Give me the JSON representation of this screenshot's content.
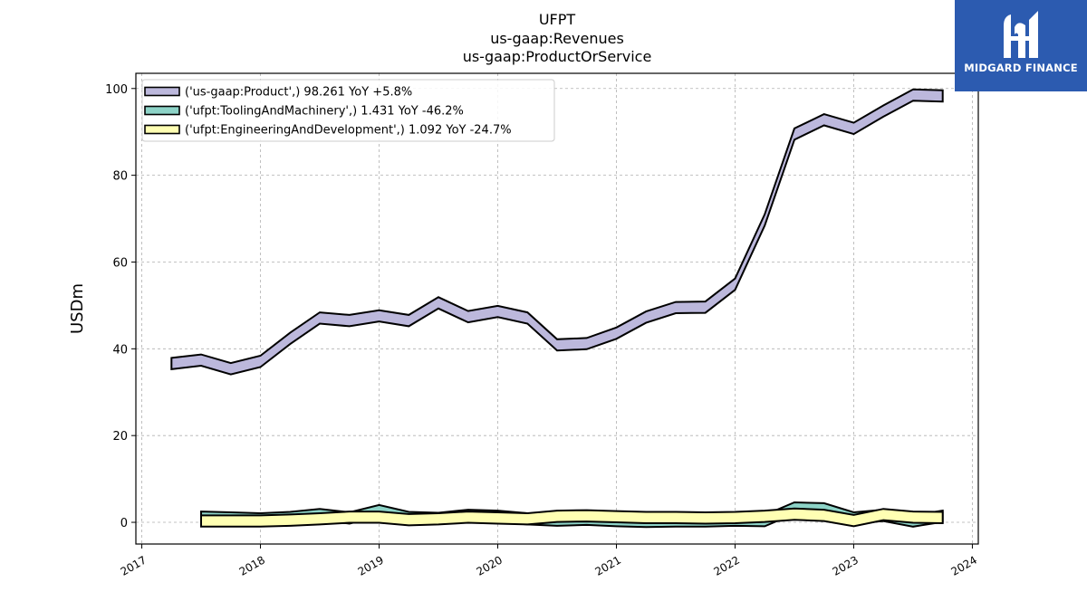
{
  "brand": {
    "name": "MIDGARD FINANCE",
    "color": "#2c5bb0"
  },
  "chart_data": {
    "type": "area",
    "title_lines": [
      "UFPT",
      "us-gaap:Revenues",
      "us-gaap:ProductOrService"
    ],
    "xlabel": "",
    "ylabel": "USDm",
    "xlim": [
      2016.95,
      2024.05
    ],
    "ylim": [
      -5,
      103.5
    ],
    "x_ticks": [
      "2017",
      "2018",
      "2019",
      "2020",
      "2021",
      "2022",
      "2023",
      "2024"
    ],
    "y_ticks": [
      "0",
      "20",
      "40",
      "60",
      "80",
      "100"
    ],
    "grid": true,
    "legend_position": "upper-left",
    "series": [
      {
        "name": "('us-gaap:Product',) 98.261 YoY +5.8%",
        "color": "#bcb8dc",
        "x": [
          2017.25,
          2017.5,
          2017.75,
          2018.0,
          2018.25,
          2018.5,
          2018.75,
          2019.0,
          2019.25,
          2019.5,
          2019.75,
          2020.0,
          2020.25,
          2020.5,
          2020.75,
          2021.0,
          2021.25,
          2021.5,
          2021.75,
          2022.0,
          2022.25,
          2022.5,
          2022.75,
          2023.0,
          2023.25,
          2023.5,
          2023.75
        ],
        "values": [
          36.6,
          37.4,
          35.4,
          37.1,
          42.4,
          47.1,
          46.5,
          47.6,
          46.5,
          50.6,
          47.4,
          48.6,
          47.1,
          40.9,
          41.2,
          43.6,
          47.3,
          49.5,
          49.6,
          54.9,
          69.7,
          89.5,
          92.8,
          90.8,
          94.8,
          98.5,
          98.3
        ]
      },
      {
        "name": "('ufpt:ToolingAndMachinery',) 1.431 YoY -46.2%",
        "color": "#8dd3c7",
        "x": [
          2017.5,
          2017.75,
          2018.0,
          2018.25,
          2018.5,
          2018.75,
          2019.0,
          2019.25,
          2019.5,
          2019.75,
          2020.0,
          2020.25,
          2020.5,
          2020.75,
          2021.0,
          2021.25,
          2021.5,
          2021.75,
          2022.0,
          2022.25,
          2022.5,
          2022.75,
          2023.0,
          2023.25,
          2023.5,
          2023.75
        ],
        "values": [
          1.2,
          1.0,
          0.8,
          1.1,
          1.8,
          1.0,
          2.7,
          1.1,
          0.9,
          1.6,
          1.4,
          0.8,
          0.5,
          0.7,
          0.4,
          0.2,
          0.3,
          0.3,
          0.5,
          0.4,
          3.3,
          3.1,
          1.0,
          1.6,
          0.3,
          1.4
        ]
      },
      {
        "name": "('ufpt:EngineeringAndDevelopment',) 1.092 YoY -24.7%",
        "color": "#ffffb3",
        "x": [
          2017.5,
          2017.75,
          2018.0,
          2018.25,
          2018.5,
          2018.75,
          2019.0,
          2019.25,
          2019.5,
          2019.75,
          2020.0,
          2020.25,
          2020.5,
          2020.75,
          2021.0,
          2021.25,
          2021.5,
          2021.75,
          2022.0,
          2022.25,
          2022.5,
          2022.75,
          2023.0,
          2023.25,
          2023.5,
          2023.75
        ],
        "values": [
          0.3,
          0.3,
          0.3,
          0.5,
          0.8,
          1.2,
          1.2,
          0.6,
          0.8,
          1.2,
          1.0,
          0.8,
          1.4,
          1.5,
          1.3,
          1.1,
          1.1,
          1.0,
          1.1,
          1.4,
          1.9,
          1.6,
          0.4,
          1.8,
          1.2,
          1.1
        ]
      }
    ]
  }
}
